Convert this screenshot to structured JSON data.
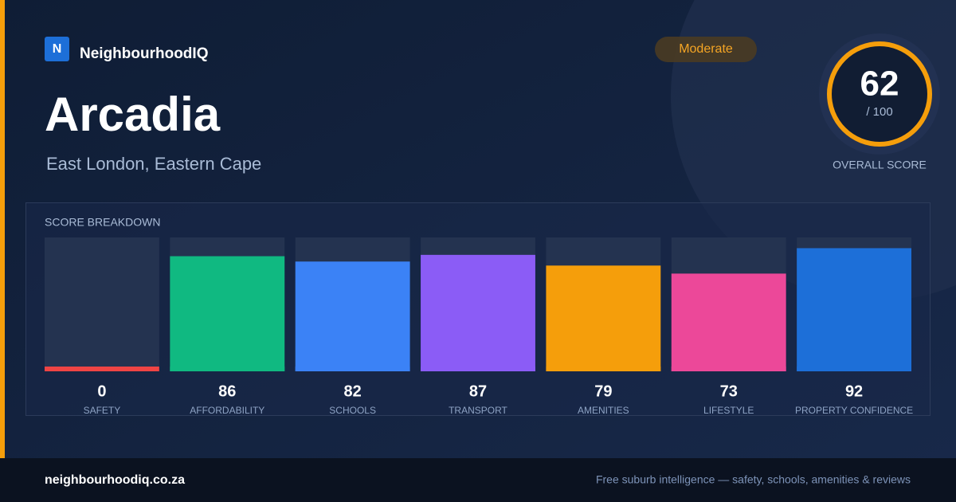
{
  "brand": "NeighbourhoodIQ",
  "logo": "N",
  "badge": "Moderate",
  "title": "Arcadia",
  "subtitle": "East London, Eastern Cape",
  "score": {
    "value": "62",
    "out_of": "/ 100",
    "label": "OVERALL SCORE"
  },
  "chart_data": {
    "type": "bar",
    "title": "SCORE BREAKDOWN",
    "categories": [
      "SAFETY",
      "AFFORDABILITY",
      "SCHOOLS",
      "TRANSPORT",
      "AMENITIES",
      "LIFESTYLE",
      "PROPERTY CONFIDENCE"
    ],
    "values": [
      0,
      86,
      82,
      87,
      79,
      73,
      92
    ],
    "colors": [
      "#ef4444",
      "#10b981",
      "#3b82f6",
      "#8b5cf6",
      "#f59e0b",
      "#ec4899",
      "#1d6fd8"
    ],
    "ylim": [
      0,
      100
    ]
  },
  "footer": {
    "site": "neighbourhoodiq.co.za",
    "tagline": "Free suburb intelligence — safety, schools, amenities & reviews"
  }
}
